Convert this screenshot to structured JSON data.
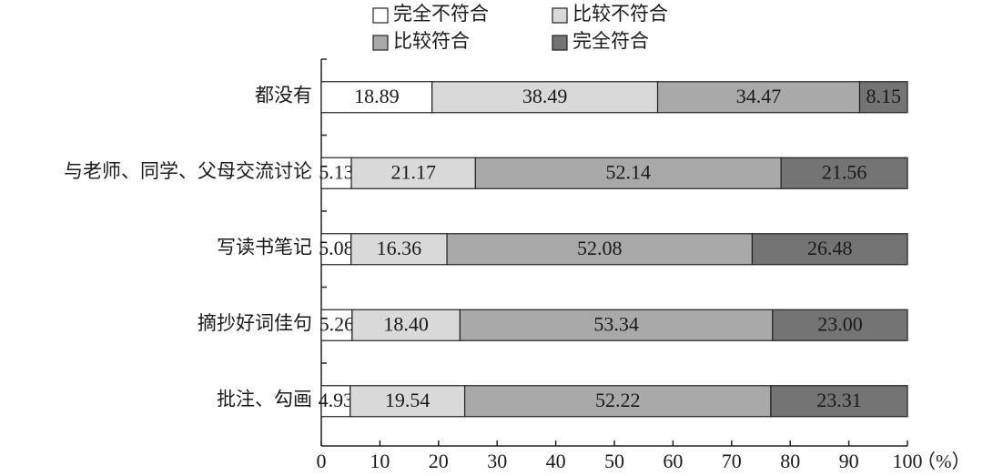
{
  "chart_data": {
    "type": "stacked-bar-horizontal",
    "categories": [
      "都没有",
      "与老师、同学、父母交流讨论",
      "写读书笔记",
      "摘抄好词佳句",
      "批注、勾画"
    ],
    "series": [
      {
        "name": "完全不符合",
        "color": "#ffffff",
        "values": [
          18.89,
          5.13,
          5.08,
          5.26,
          4.93
        ],
        "value_labels": [
          "18.89",
          "5.13",
          "5.08",
          "5.26",
          "4.93"
        ]
      },
      {
        "name": "比较不符合",
        "color": "#d9d9d9",
        "values": [
          38.49,
          21.17,
          16.36,
          18.4,
          19.54
        ],
        "value_labels": [
          "38.49",
          "21.17",
          "16.36",
          "18.40",
          "19.54"
        ]
      },
      {
        "name": "比较符合",
        "color": "#a9a9a9",
        "values": [
          34.47,
          52.14,
          52.08,
          53.34,
          52.22
        ],
        "value_labels": [
          "34.47",
          "52.14",
          "52.08",
          "53.34",
          "52.22"
        ]
      },
      {
        "name": "完全符合",
        "color": "#747474",
        "values": [
          8.15,
          21.56,
          26.48,
          23.0,
          23.31
        ],
        "value_labels": [
          "8.15",
          "21.56",
          "26.48",
          "23.00",
          "23.31"
        ]
      }
    ],
    "xlabel": "（%）",
    "xlim": [
      0,
      100
    ],
    "xticks": [
      0,
      10,
      20,
      30,
      40,
      50,
      60,
      70,
      80,
      90,
      100
    ],
    "legend": "top"
  }
}
